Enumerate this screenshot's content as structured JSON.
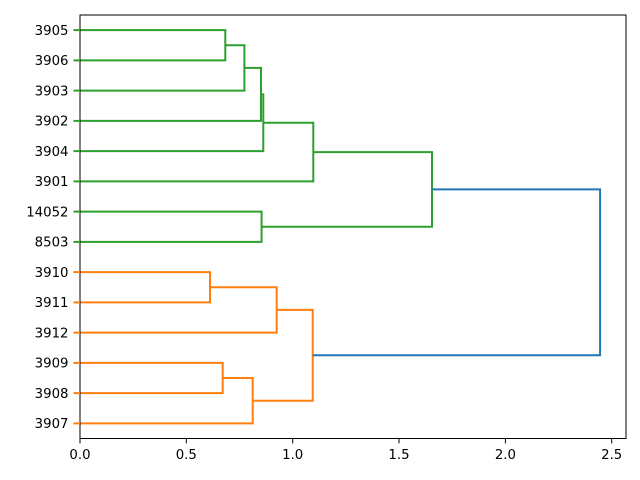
{
  "chart_data": {
    "type": "dendrogram",
    "orientation": "right",
    "title": "",
    "xlabel": "",
    "ylabel": "",
    "grid": false,
    "legend": null,
    "leaves": [
      "3905",
      "3906",
      "3903",
      "3902",
      "3904",
      "3901",
      "14052",
      "8503",
      "3910",
      "3911",
      "3912",
      "3909",
      "3908",
      "3907"
    ],
    "x_ticks": [
      {
        "value": 0.0,
        "label": "0.0"
      },
      {
        "value": 0.5,
        "label": "0.5"
      },
      {
        "value": 1.0,
        "label": "1.0"
      },
      {
        "value": 1.5,
        "label": "1.5"
      },
      {
        "value": 2.0,
        "label": "2.0"
      },
      {
        "value": 2.5,
        "label": "2.5"
      }
    ],
    "xlim": [
      0,
      2.567
    ],
    "palette": {
      "blue": "#1f77b4",
      "green": "#2ca02c",
      "orange": "#ff7f0e",
      "axis": "#000000"
    },
    "root": {
      "d": 2.445,
      "color": "blue",
      "children": [
        {
          "d": 1.655,
          "color": "green",
          "children": [
            {
              "d": 1.097,
              "color": "green",
              "children": [
                {
                  "d": 0.862,
                  "color": "green",
                  "children": [
                    {
                      "d": 0.851,
                      "color": "green",
                      "children": [
                        {
                          "d": 0.773,
                          "color": "green",
                          "children": [
                            {
                              "d": 0.683,
                              "color": "green",
                              "children": [
                                {
                                  "leaf": "3905"
                                },
                                {
                                  "leaf": "3906"
                                }
                              ]
                            },
                            {
                              "leaf": "3903"
                            }
                          ]
                        },
                        {
                          "leaf": "3902"
                        }
                      ]
                    },
                    {
                      "leaf": "3904"
                    }
                  ]
                },
                {
                  "leaf": "3901"
                }
              ]
            },
            {
              "d": 0.854,
              "color": "green",
              "children": [
                {
                  "leaf": "14052"
                },
                {
                  "leaf": "8503"
                }
              ]
            }
          ]
        },
        {
          "d": 1.094,
          "color": "orange",
          "children": [
            {
              "d": 0.925,
              "color": "orange",
              "children": [
                {
                  "d": 0.611,
                  "color": "orange",
                  "children": [
                    {
                      "leaf": "3910"
                    },
                    {
                      "leaf": "3911"
                    }
                  ]
                },
                {
                  "leaf": "3912"
                }
              ]
            },
            {
              "d": 0.812,
              "color": "orange",
              "children": [
                {
                  "d": 0.671,
                  "color": "orange",
                  "children": [
                    {
                      "leaf": "3909"
                    },
                    {
                      "leaf": "3908"
                    }
                  ]
                },
                {
                  "leaf": "3907"
                }
              ]
            }
          ]
        }
      ]
    }
  }
}
